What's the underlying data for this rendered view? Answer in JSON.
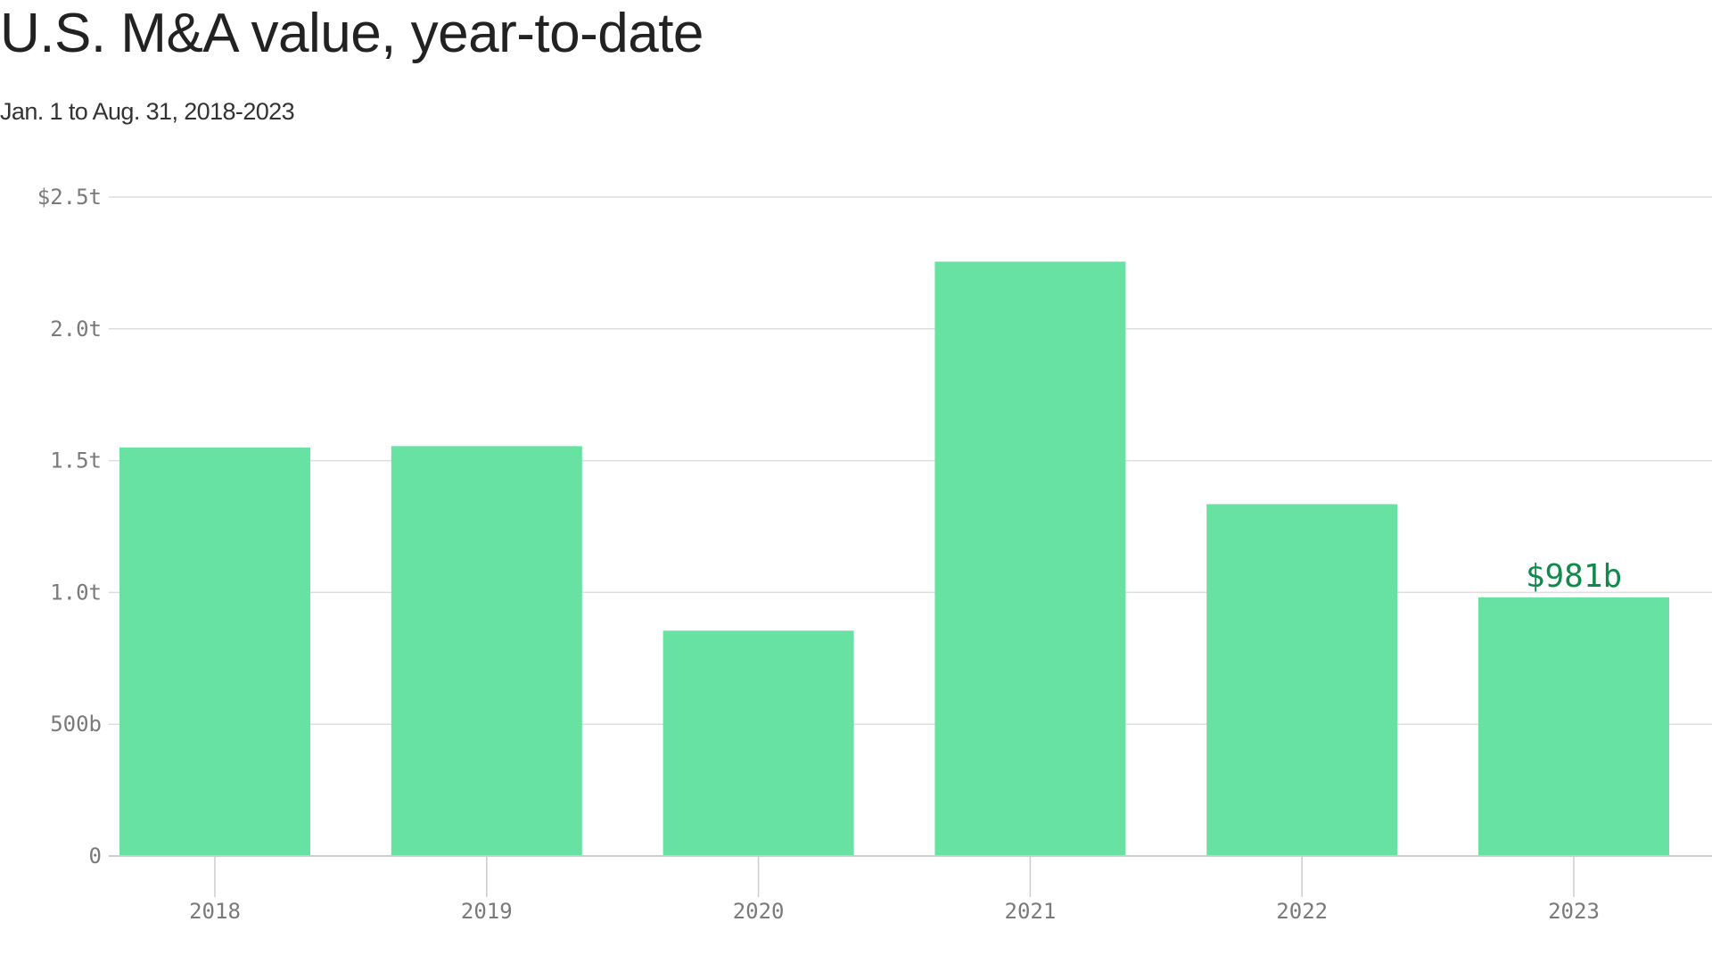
{
  "title": "U.S. M&A value, year-to-date",
  "subtitle": "Jan. 1 to Aug. 31, 2018-2023",
  "colors": {
    "bar": "#67e2a3",
    "annotation": "#0f8a4a",
    "grid": "#dddddd",
    "axis": "#cccccc",
    "tick_text": "#7a7a7a"
  },
  "chart_data": {
    "type": "bar",
    "title": "U.S. M&A value, year-to-date",
    "subtitle": "Jan. 1 to Aug. 31, 2018-2023",
    "xlabel": "",
    "ylabel": "",
    "categories": [
      "2018",
      "2019",
      "2020",
      "2021",
      "2022",
      "2023"
    ],
    "values": [
      1550,
      1555,
      855,
      2255,
      1335,
      981
    ],
    "value_unit": "billions of dollars",
    "ylim": [
      0,
      2500
    ],
    "yticks": [
      {
        "value": 0,
        "label": "0"
      },
      {
        "value": 500,
        "label": "500b"
      },
      {
        "value": 1000,
        "label": "1.0t"
      },
      {
        "value": 1500,
        "label": "1.5t"
      },
      {
        "value": 2000,
        "label": "2.0t"
      },
      {
        "value": 2500,
        "label": "$2.5t"
      }
    ],
    "grid": true,
    "legend": "none",
    "annotations": [
      {
        "category": "2023",
        "text": "$981b"
      }
    ]
  }
}
